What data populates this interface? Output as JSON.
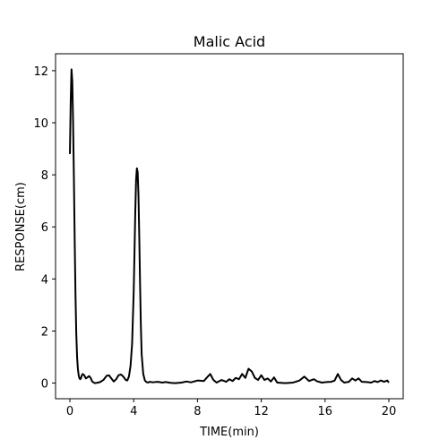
{
  "chart_data": {
    "type": "line",
    "title": "Malic Acid",
    "xlabel": "TIME(min)",
    "ylabel": "RESPONSE(cm)",
    "xlim": [
      -0.9,
      20.9
    ],
    "ylim": [
      -0.6,
      12.65
    ],
    "xticks": [
      0,
      4,
      8,
      12,
      16,
      20
    ],
    "yticks": [
      0,
      2,
      4,
      6,
      8,
      10,
      12
    ],
    "grid": false,
    "line_color": "#000000",
    "series": [
      {
        "x": [
          0.0,
          0.05,
          0.1,
          0.15,
          0.2,
          0.25,
          0.3,
          0.35,
          0.4,
          0.45,
          0.5,
          0.55,
          0.6,
          0.65,
          0.7,
          0.75,
          0.8,
          0.9,
          1.0,
          1.1,
          1.2,
          1.3,
          1.4,
          1.55,
          1.7,
          1.9,
          2.1,
          2.3,
          2.45,
          2.6,
          2.75,
          2.9,
          3.05,
          3.2,
          3.35,
          3.5,
          3.6,
          3.7,
          3.8,
          3.9,
          4.0,
          4.05,
          4.1,
          4.15,
          4.2,
          4.25,
          4.3,
          4.35,
          4.4,
          4.45,
          4.5,
          4.6,
          4.7,
          4.8,
          4.9,
          5.0,
          5.2,
          5.5,
          5.8,
          6.0,
          6.3,
          6.6,
          7.0,
          7.3,
          7.6,
          8.0,
          8.4,
          8.6,
          8.8,
          9.0,
          9.2,
          9.5,
          9.8,
          10.0,
          10.2,
          10.4,
          10.6,
          10.8,
          11.0,
          11.2,
          11.4,
          11.6,
          11.8,
          12.0,
          12.2,
          12.4,
          12.6,
          12.8,
          13.0,
          13.5,
          14.0,
          14.4,
          14.7,
          15.0,
          15.3,
          15.5,
          15.8,
          16.1,
          16.4,
          16.6,
          16.8,
          17.0,
          17.2,
          17.5,
          17.7,
          17.9,
          18.1,
          18.3,
          18.6,
          18.9,
          19.1,
          19.3,
          19.5,
          19.7,
          19.9,
          20.0
        ],
        "y": [
          8.8,
          10.8,
          12.05,
          11.6,
          10.0,
          7.9,
          5.5,
          3.4,
          1.9,
          1.0,
          0.55,
          0.3,
          0.18,
          0.15,
          0.2,
          0.3,
          0.35,
          0.3,
          0.18,
          0.22,
          0.27,
          0.2,
          0.06,
          0.0,
          0.01,
          0.04,
          0.12,
          0.28,
          0.3,
          0.18,
          0.06,
          0.15,
          0.3,
          0.33,
          0.25,
          0.12,
          0.1,
          0.25,
          0.65,
          1.5,
          3.5,
          5.0,
          6.6,
          7.8,
          8.25,
          8.1,
          7.2,
          5.6,
          3.8,
          2.2,
          1.1,
          0.35,
          0.1,
          0.04,
          0.02,
          0.05,
          0.03,
          0.05,
          0.02,
          0.04,
          0.01,
          0.0,
          0.02,
          0.06,
          0.03,
          0.1,
          0.08,
          0.22,
          0.35,
          0.12,
          0.02,
          0.12,
          0.05,
          0.15,
          0.08,
          0.2,
          0.15,
          0.35,
          0.2,
          0.55,
          0.45,
          0.2,
          0.12,
          0.3,
          0.12,
          0.18,
          0.06,
          0.22,
          0.02,
          0.0,
          0.02,
          0.1,
          0.25,
          0.08,
          0.15,
          0.07,
          0.02,
          0.04,
          0.05,
          0.1,
          0.35,
          0.12,
          0.02,
          0.05,
          0.18,
          0.1,
          0.18,
          0.05,
          0.04,
          0.02,
          0.08,
          0.04,
          0.1,
          0.05,
          0.1,
          0.02
        ]
      }
    ]
  }
}
